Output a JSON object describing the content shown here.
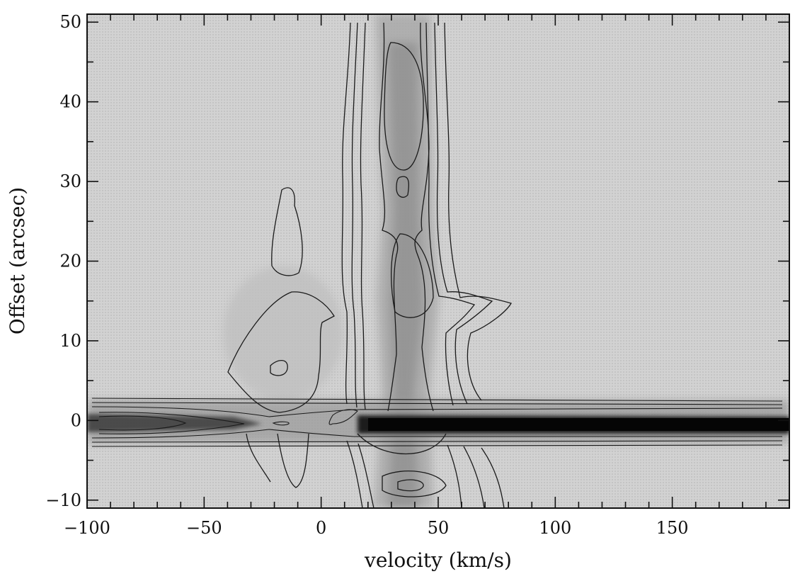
{
  "chart_data": {
    "type": "heatmap",
    "subtype": "position-velocity contour map",
    "title": "",
    "xlabel": "velocity (km/s)",
    "ylabel": "Offset (arcsec)",
    "xlim": [
      -100,
      200
    ],
    "ylim": [
      -11,
      51
    ],
    "x_ticks": [
      -100,
      -50,
      0,
      50,
      100,
      150
    ],
    "y_ticks": [
      -10,
      0,
      10,
      20,
      30,
      40,
      50
    ],
    "grid": false,
    "colormap": "grayscale (darker = brighter emission)",
    "contour_features": [
      {
        "name": "ridge",
        "v_range": [
          -100,
          200
        ],
        "offset": 0,
        "note": "strong horizontal ridge at 0 arcsec; darkest from ~25 to 200 km/s"
      },
      {
        "name": "vertical-band",
        "v_range": [
          15,
          55
        ],
        "offset_range": [
          -11,
          51
        ],
        "note": "extended emission column centered near 35 km/s"
      },
      {
        "name": "peak",
        "v": 35,
        "offset": 29.5
      },
      {
        "name": "peak",
        "v": 36,
        "offset": 19
      },
      {
        "name": "peak",
        "v": 37,
        "offset": -7.8
      },
      {
        "name": "peak",
        "v": -72,
        "offset": 0
      },
      {
        "name": "peak",
        "v": -15,
        "offset": 0
      },
      {
        "name": "isolated-contour",
        "v": -16,
        "offset_range": [
          20,
          29
        ]
      },
      {
        "name": "isolated-contour",
        "v": -20,
        "offset_range": [
          6,
          8
        ]
      }
    ]
  }
}
